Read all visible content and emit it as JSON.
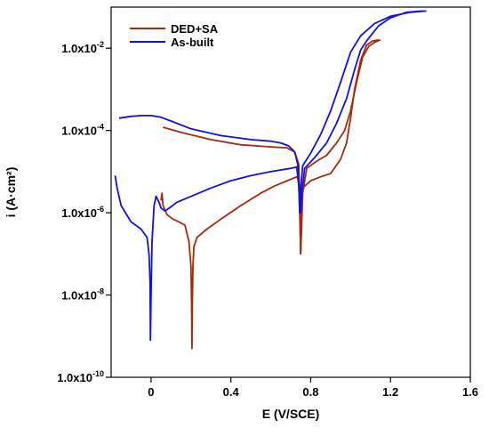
{
  "chart_data": {
    "type": "line",
    "xlabel": "E (V/SCE)",
    "ylabel": "i (A·cm²)",
    "x_ticks": [
      {
        "value": 0,
        "label": "0"
      },
      {
        "value": 0.4,
        "label": "0.4"
      },
      {
        "value": 0.8,
        "label": "0.8"
      },
      {
        "value": 1.2,
        "label": "1.2"
      },
      {
        "value": 1.6,
        "label": "1.6"
      }
    ],
    "y_ticks": [
      {
        "value": 1e-10,
        "base": "1.0x10",
        "exp": "-10"
      },
      {
        "value": 1e-08,
        "base": "1.0x10",
        "exp": "-8"
      },
      {
        "value": 1e-06,
        "base": "1.0x10",
        "exp": "-6"
      },
      {
        "value": 0.0001,
        "base": "1.0x10",
        "exp": "-4"
      },
      {
        "value": 0.01,
        "base": "1.0x10",
        "exp": "-2"
      }
    ],
    "xlim": [
      -0.2,
      1.6
    ],
    "ylim": [
      1e-10,
      0.1
    ],
    "yscale": "log",
    "grid": false,
    "legend_position": "top-left",
    "series": [
      {
        "name": "DED+SA",
        "color": "#a52a0a",
        "segments": [
          [
            [
              0.05,
              2e-06
            ],
            [
              0.055,
              3e-06
            ],
            [
              0.06,
              1.5e-06
            ],
            [
              0.08,
              9e-07
            ],
            [
              0.11,
              7e-07
            ],
            [
              0.14,
              6e-07
            ],
            [
              0.17,
              5e-07
            ],
            [
              0.19,
              2e-07
            ],
            [
              0.2,
              5e-08
            ],
            [
              0.203,
              5e-09
            ],
            [
              0.205,
              5e-10
            ],
            [
              0.207,
              5e-09
            ],
            [
              0.21,
              5e-08
            ],
            [
              0.215,
              1.5e-07
            ],
            [
              0.23,
              2.5e-07
            ],
            [
              0.28,
              4e-07
            ],
            [
              0.35,
              7e-07
            ],
            [
              0.45,
              1.5e-06
            ],
            [
              0.55,
              3e-06
            ],
            [
              0.62,
              4.5e-06
            ],
            [
              0.7,
              6.5e-06
            ],
            [
              0.73,
              7.5e-06
            ],
            [
              0.74,
              6e-06
            ],
            [
              0.745,
              1e-06
            ],
            [
              0.75,
              1e-07
            ],
            [
              0.755,
              1e-06
            ],
            [
              0.76,
              4e-06
            ],
            [
              0.8,
              6e-06
            ],
            [
              0.85,
              7.5e-06
            ],
            [
              0.9,
              9e-06
            ],
            [
              0.95,
              2e-05
            ],
            [
              0.98,
              5e-05
            ],
            [
              1.0,
              0.0002
            ],
            [
              1.02,
              0.001
            ],
            [
              1.05,
              0.005
            ],
            [
              1.08,
              0.012
            ],
            [
              1.11,
              0.015
            ],
            [
              1.14,
              0.016
            ]
          ],
          [
            [
              0.06,
              0.00012
            ],
            [
              0.15,
              9e-05
            ],
            [
              0.3,
              6e-05
            ],
            [
              0.45,
              4.5e-05
            ],
            [
              0.6,
              4e-05
            ],
            [
              0.68,
              3.8e-05
            ],
            [
              0.72,
              3e-05
            ],
            [
              0.74,
              1.5e-05
            ],
            [
              0.745,
              2e-06
            ],
            [
              0.75,
              1e-07
            ],
            [
              0.76,
              3e-06
            ],
            [
              0.78,
              1.2e-05
            ],
            [
              0.83,
              1.8e-05
            ],
            [
              0.88,
              2.5e-05
            ],
            [
              0.93,
              5e-05
            ],
            [
              0.97,
              0.0001
            ],
            [
              1.0,
              0.0003
            ],
            [
              1.03,
              0.0015
            ],
            [
              1.06,
              0.006
            ],
            [
              1.09,
              0.011
            ],
            [
              1.12,
              0.014
            ],
            [
              1.15,
              0.016
            ]
          ]
        ]
      },
      {
        "name": "As-built",
        "color": "#1010e0",
        "segments": [
          [
            [
              -0.18,
              8e-06
            ],
            [
              -0.17,
              4e-06
            ],
            [
              -0.15,
              1.5e-06
            ],
            [
              -0.1,
              6e-07
            ],
            [
              -0.05,
              4e-07
            ],
            [
              -0.02,
              2.5e-07
            ],
            [
              -0.01,
              1e-07
            ],
            [
              -0.005,
              2e-08
            ],
            [
              -0.003,
              8e-10
            ],
            [
              0.0,
              1e-08
            ],
            [
              0.005,
              2e-07
            ],
            [
              0.015,
              1.5e-06
            ],
            [
              0.025,
              2.5e-06
            ],
            [
              0.04,
              1.8e-06
            ],
            [
              0.05,
              1.3e-06
            ],
            [
              0.07,
              1.1e-06
            ],
            [
              0.1,
              1.4e-06
            ],
            [
              0.13,
              1.8e-06
            ],
            [
              0.2,
              2.5e-06
            ],
            [
              0.3,
              4e-06
            ],
            [
              0.4,
              6e-06
            ],
            [
              0.5,
              8e-06
            ],
            [
              0.6,
              1e-05
            ],
            [
              0.7,
              1.2e-05
            ],
            [
              0.73,
              1.3e-05
            ],
            [
              0.745,
              3e-06
            ],
            [
              0.75,
              1e-06
            ],
            [
              0.755,
              3e-06
            ],
            [
              0.77,
              1.2e-05
            ],
            [
              0.82,
              2.2e-05
            ],
            [
              0.88,
              5e-05
            ],
            [
              0.93,
              0.00015
            ],
            [
              0.98,
              0.0006
            ],
            [
              1.02,
              0.003
            ],
            [
              1.05,
              0.009
            ],
            [
              1.08,
              0.015
            ],
            [
              1.1,
              0.02
            ],
            [
              1.14,
              0.035
            ],
            [
              1.2,
              0.055
            ],
            [
              1.28,
              0.075
            ],
            [
              1.35,
              0.08
            ],
            [
              1.38,
              0.08
            ]
          ],
          [
            [
              -0.16,
              0.0002
            ],
            [
              -0.1,
              0.00022
            ],
            [
              -0.05,
              0.00023
            ],
            [
              0.0,
              0.00023
            ],
            [
              0.05,
              0.00021
            ],
            [
              0.1,
              0.00017
            ],
            [
              0.2,
              0.00011
            ],
            [
              0.35,
              7.5e-05
            ],
            [
              0.5,
              6e-05
            ],
            [
              0.6,
              5.5e-05
            ],
            [
              0.65,
              5e-05
            ],
            [
              0.69,
              4.2e-05
            ],
            [
              0.72,
              3e-05
            ],
            [
              0.735,
              1.5e-05
            ],
            [
              0.74,
              5e-06
            ],
            [
              0.745,
              1e-06
            ],
            [
              0.75,
              4e-06
            ],
            [
              0.76,
              1.4e-05
            ],
            [
              0.8,
              2.8e-05
            ],
            [
              0.85,
              8e-05
            ],
            [
              0.9,
              0.0003
            ],
            [
              0.95,
              0.0015
            ],
            [
              1.0,
              0.008
            ],
            [
              1.05,
              0.02
            ],
            [
              1.12,
              0.04
            ],
            [
              1.2,
              0.06
            ],
            [
              1.3,
              0.075
            ],
            [
              1.37,
              0.08
            ]
          ]
        ]
      }
    ]
  }
}
